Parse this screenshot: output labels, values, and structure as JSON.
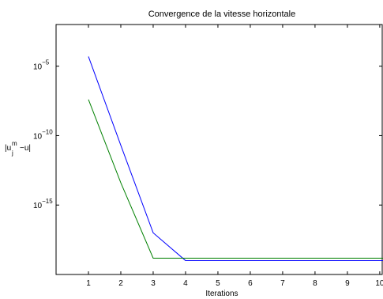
{
  "chart_data": {
    "type": "line",
    "title": "Convergence de la vitesse horizontale",
    "xlabel": "Iterations",
    "ylabel": {
      "base": "|u",
      "sub": "j",
      "sup": "m",
      "rest": "−u|"
    },
    "yscale": "log",
    "xlim": [
      0,
      10.1
    ],
    "ylim": [
      1e-20,
      0.01
    ],
    "xticks": [
      1,
      2,
      3,
      4,
      5,
      6,
      7,
      8,
      9,
      10
    ],
    "yticks": [
      {
        "value": 1e-05,
        "base": "10",
        "exp": "−5"
      },
      {
        "value": 1e-10,
        "base": "10",
        "exp": "−10"
      },
      {
        "value": 1e-15,
        "base": "10",
        "exp": "−15"
      }
    ],
    "grid": false,
    "x": [
      1,
      2,
      3,
      4,
      5,
      6,
      7,
      8,
      9,
      10,
      10.1
    ],
    "series": [
      {
        "color": "#0000ff",
        "values": [
          5e-05,
          2e-11,
          1e-17,
          1e-19,
          1e-19,
          1e-19,
          1e-19,
          1e-19,
          1e-19,
          1e-19,
          1e-19
        ]
      },
      {
        "color": "#008000",
        "values": [
          4e-08,
          4e-14,
          1.5e-19,
          1.5e-19,
          1.5e-19,
          1.5e-19,
          1.5e-19,
          1.5e-19,
          1.5e-19,
          1.5e-19,
          1.5e-19
        ]
      }
    ]
  }
}
